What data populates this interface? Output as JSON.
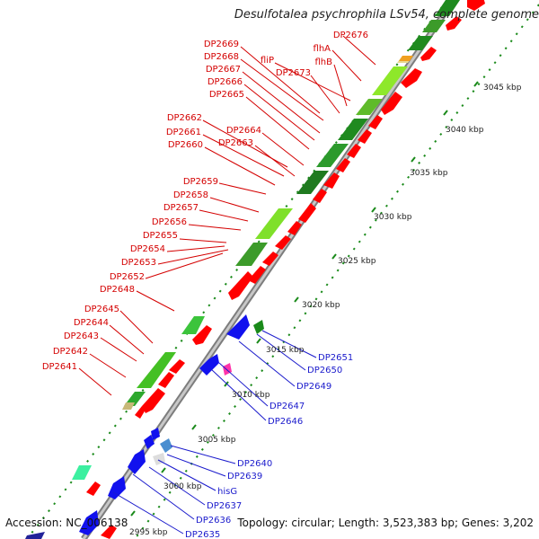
{
  "title": "Desulfotalea psychrophila LSv54, complete genome",
  "footer": {
    "accession": "Accession: NC_006138",
    "topology": "Topology: circular; Length: 3,523,383 bp; Genes: 3,202"
  },
  "colors": {
    "forward_label": "#d40000",
    "reverse_label": "#1a1acc",
    "forward_gene": "#ff0000",
    "reverse_gene": "#1111ee",
    "cds_green_dark": "#1f8a1f",
    "cds_green_light": "#8ee82a",
    "backbone": "#9a9a9a",
    "tick": "#1a8a1a"
  },
  "scale_labels": [
    "3045 kbp",
    "3040 kbp",
    "3035 kbp",
    "3030 kbp",
    "3025 kbp",
    "3020 kbp",
    "3015 kbp",
    "3010 kbp",
    "3005 kbp",
    "3000 kbp",
    "2995 kbp"
  ],
  "forward_labels": [
    "DP2676",
    "flhA",
    "DP2669",
    "DP2668",
    "fliP",
    "flhB",
    "DP2673",
    "DP2667",
    "DP2666",
    "DP2665",
    "DP2662",
    "DP2664",
    "DP2661",
    "DP2663",
    "DP2660",
    "DP2659",
    "DP2658",
    "DP2657",
    "DP2656",
    "DP2655",
    "DP2654",
    "DP2653",
    "DP2652",
    "DP2648",
    "DP2645",
    "DP2644",
    "DP2643",
    "DP2642",
    "DP2641"
  ],
  "reverse_labels": [
    "DP2651",
    "DP2650",
    "DP2649",
    "DP2647",
    "DP2646",
    "DP2640",
    "DP2639",
    "hisG",
    "DP2637",
    "DP2636",
    "DP2635"
  ]
}
